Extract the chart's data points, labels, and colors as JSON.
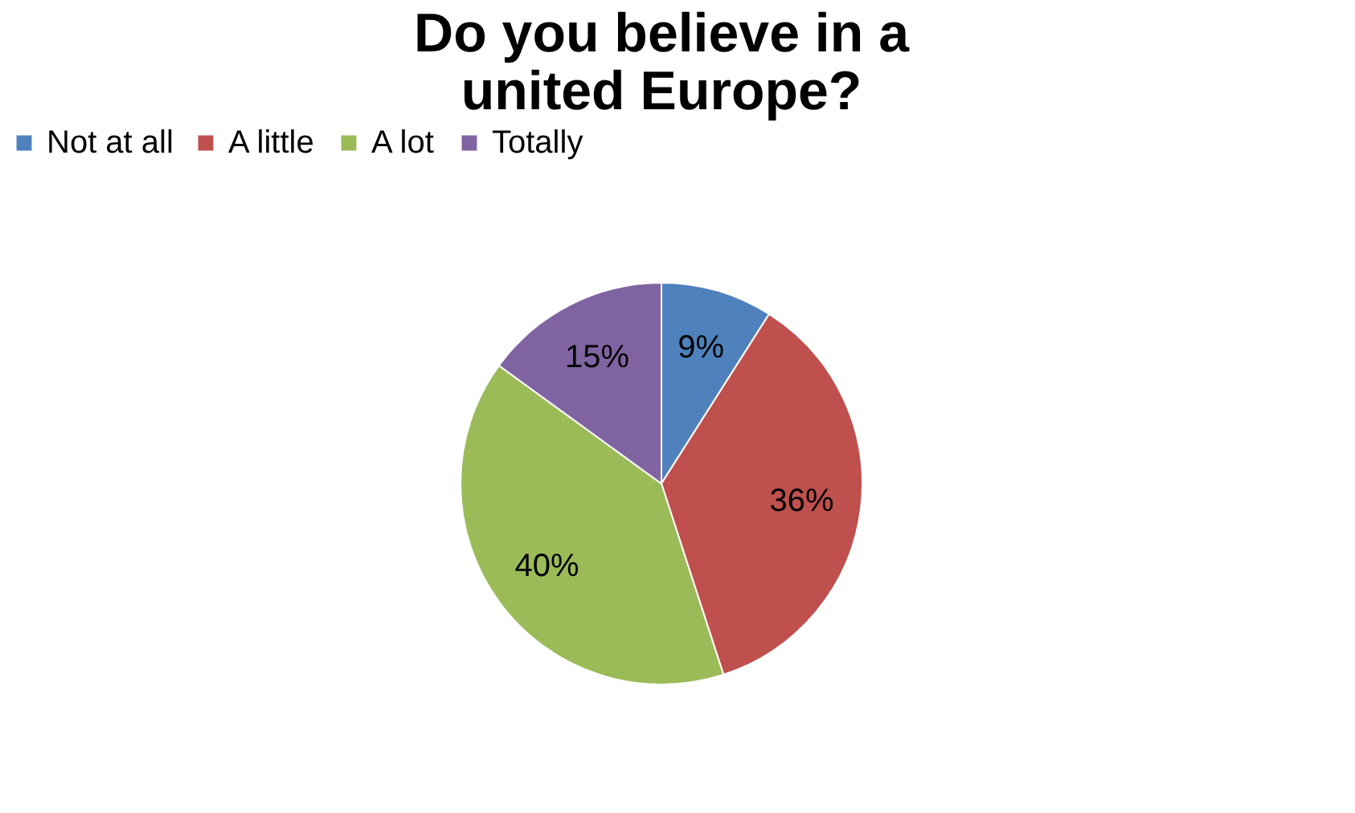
{
  "chart_data": {
    "type": "pie",
    "title": "Do you believe in a united Europe?",
    "categories": [
      "Not at all",
      "A little",
      "A lot",
      "Totally"
    ],
    "values": [
      9,
      36,
      40,
      15
    ],
    "value_labels": [
      "9%",
      "36%",
      "40%",
      "15%"
    ],
    "colors": [
      "#4f81bd",
      "#c0504d",
      "#9bbb59",
      "#8064a2"
    ],
    "legend": "top"
  }
}
